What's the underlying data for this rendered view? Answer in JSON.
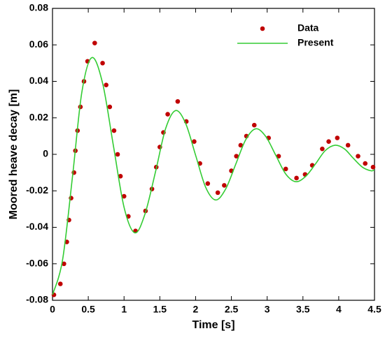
{
  "chart_data": {
    "type": "scatter",
    "xlabel": "Time [s]",
    "ylabel": "Moored heave decay [m]",
    "xlim": [
      0,
      4.5
    ],
    "xticks": [
      0,
      0.5,
      1,
      1.5,
      2,
      2.5,
      3,
      3.5,
      4,
      4.5
    ],
    "ylim": [
      -0.08,
      0.08
    ],
    "yticks": [
      -0.08,
      -0.06,
      -0.04,
      -0.02,
      0,
      0.02,
      0.04,
      0.06,
      0.08
    ],
    "legend": "upper right",
    "series": [
      {
        "name": "Data",
        "style": "markers",
        "color": "#c00000",
        "x": [
          0.02,
          0.11,
          0.16,
          0.2,
          0.23,
          0.26,
          0.3,
          0.32,
          0.35,
          0.39,
          0.44,
          0.49,
          0.59,
          0.7,
          0.75,
          0.8,
          0.86,
          0.91,
          0.95,
          1.0,
          1.06,
          1.16,
          1.3,
          1.39,
          1.45,
          1.5,
          1.55,
          1.61,
          1.75,
          1.87,
          1.98,
          2.06,
          2.17,
          2.31,
          2.4,
          2.5,
          2.57,
          2.63,
          2.71,
          2.82,
          3.02,
          3.16,
          3.26,
          3.41,
          3.53,
          3.63,
          3.77,
          3.86,
          3.98,
          4.13,
          4.27,
          4.37,
          4.48
        ],
        "values": [
          -0.077,
          -0.071,
          -0.06,
          -0.048,
          -0.036,
          -0.024,
          -0.01,
          0.002,
          0.013,
          0.026,
          0.04,
          0.051,
          0.061,
          0.05,
          0.038,
          0.026,
          0.013,
          0.0,
          -0.012,
          -0.023,
          -0.034,
          -0.042,
          -0.031,
          -0.019,
          -0.007,
          0.004,
          0.012,
          0.022,
          0.029,
          0.018,
          0.007,
          -0.005,
          -0.016,
          -0.021,
          -0.017,
          -0.009,
          -0.001,
          0.005,
          0.01,
          0.016,
          0.009,
          -0.001,
          -0.008,
          -0.013,
          -0.011,
          -0.006,
          0.003,
          0.007,
          0.009,
          0.005,
          -0.001,
          -0.005,
          -0.007
        ]
      },
      {
        "name": "Present",
        "style": "line",
        "color": "#33cc33",
        "x": [
          0,
          0.14,
          0.28,
          0.41,
          0.55,
          0.7,
          0.85,
          1.0,
          1.15,
          1.29,
          1.44,
          1.58,
          1.72,
          1.86,
          2.0,
          2.14,
          2.28,
          2.42,
          2.56,
          2.7,
          2.84,
          2.98,
          3.12,
          3.26,
          3.4,
          3.54,
          3.68,
          3.81,
          3.95,
          4.08,
          4.2,
          4.33,
          4.45,
          4.5
        ],
        "values": [
          -0.077,
          -0.058,
          -0.012,
          0.034,
          0.053,
          0.039,
          0.005,
          -0.029,
          -0.043,
          -0.033,
          -0.0095,
          0.014,
          0.024,
          0.017,
          -0.0005,
          -0.018,
          -0.025,
          -0.019,
          -0.0055,
          0.008,
          0.014,
          0.0098,
          -0.0005,
          -0.0108,
          -0.015,
          -0.012,
          -0.005,
          0.002,
          0.005,
          0.003,
          -0.002,
          -0.007,
          -0.009,
          -0.0085
        ]
      }
    ]
  }
}
